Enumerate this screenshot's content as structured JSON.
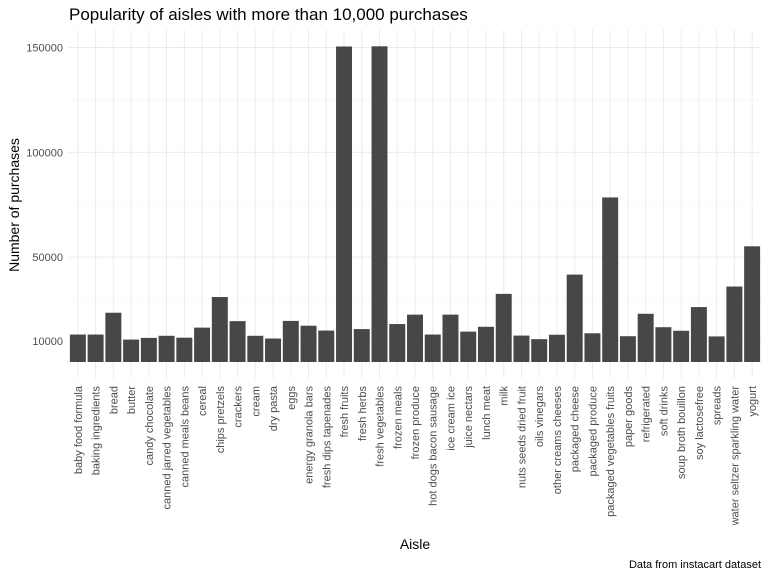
{
  "chart_data": {
    "type": "bar",
    "title": "Popularity of aisles with more than 10,000 purchases",
    "xlabel": "Aisle",
    "ylabel": "Number of purchases",
    "caption": "Data from instacart dataset",
    "ylim": [
      0,
      150000
    ],
    "yticks": [
      10000,
      50000,
      100000,
      150000
    ],
    "yticklabels": [
      "10000",
      "50000",
      "100000",
      "150000"
    ],
    "grid": true,
    "bar_color": "#474747",
    "categories": [
      "baby food formula",
      "baking ingredients",
      "bread",
      "butter",
      "candy chocolate",
      "canned jarred vegetables",
      "canned meals beans",
      "cereal",
      "chips pretzels",
      "crackers",
      "cream",
      "dry pasta",
      "eggs",
      "energy granola bars",
      "fresh dips tapenades",
      "fresh fruits",
      "fresh herbs",
      "fresh vegetables",
      "frozen meals",
      "frozen produce",
      "hot dogs bacon sausage",
      "ice cream ice",
      "juice nectars",
      "lunch meat",
      "milk",
      "nuts seeds dried fruit",
      "oils vinegars",
      "other creams cheeses",
      "packaged cheese",
      "packaged produce",
      "packaged vegetables fruits",
      "paper goods",
      "refrigerated",
      "soft drinks",
      "soup broth bouillon",
      "soy lactosefree",
      "spreads",
      "water seltzer sparkling water",
      "yogurt"
    ],
    "values": [
      13100,
      13100,
      23500,
      10700,
      11500,
      12500,
      11600,
      16400,
      31000,
      19500,
      12500,
      11200,
      19600,
      17300,
      15000,
      150500,
      15700,
      150600,
      18100,
      22600,
      13100,
      22600,
      14500,
      16800,
      32500,
      12600,
      10900,
      13000,
      41700,
      13700,
      78500,
      12300,
      23000,
      16600,
      14900,
      26200,
      12200,
      36000,
      55200
    ]
  }
}
